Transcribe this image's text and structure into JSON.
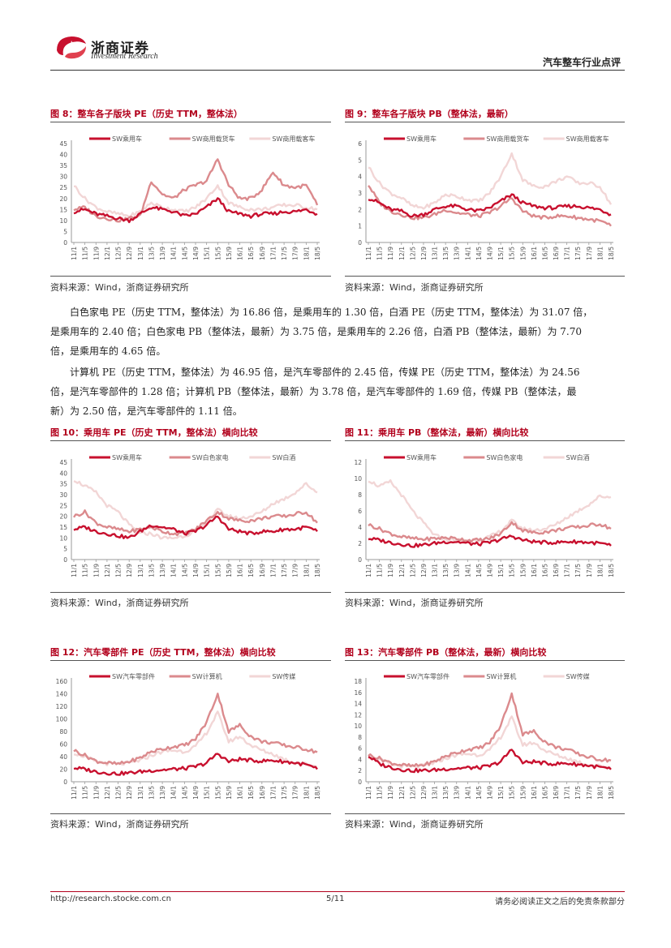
{
  "header": {
    "logo_cn": "浙商证券",
    "logo_en": "Investment Research",
    "report_type": "汽车整车行业点评"
  },
  "colors": {
    "brand": "#b2001c",
    "s1": "#c8102e",
    "s2": "#db8a8d",
    "s3": "#f2d6d6"
  },
  "source_text": "资料来源：Wind，浙商证券研究所",
  "figures": {
    "f8": {
      "title": "图 8：整车各子版块 PE（历史 TTM，整体法）"
    },
    "f9": {
      "title": "图 9：整车各子版块 PB（整体法，最新）"
    },
    "f10": {
      "title": "图 10：乘用车 PE（历史 TTM，整体法）横向比较"
    },
    "f11": {
      "title": "图 11：乘用车 PB（整体法，最新）横向比较"
    },
    "f12": {
      "title": "图 12：汽车零部件 PE（历史 TTM，整体法）横向比较"
    },
    "f13": {
      "title": "图 13：汽车零部件 PB（整体法，最新）横向比较"
    }
  },
  "paragraphs": {
    "p1": [
      "白色家电 PE（历史 TTM，整体法）为 16.86 倍，是乘用车的 1.30 倍，白酒 PE（历史 TTM，整体法）为 31.07 倍，",
      "是乘用车的 2.40 倍；白色家电 PB（整体法，最新）为 3.75 倍，是乘用车的 2.26 倍，白酒 PB（整体法，最新）为 7.70",
      "倍，是乘用车的 4.65 倍。"
    ],
    "p2": [
      "计算机 PE（历史 TTM，整体法）为 46.95 倍，是汽车零部件的 2.45 倍，传媒 PE（历史 TTM，整体法）为 24.56",
      "倍，是汽车零部件的 1.28 倍；计算机 PB（整体法，最新）为 3.78 倍，是汽车零部件的 1.69 倍，传媒 PB（整体法，最",
      "新）为 2.50 倍，是汽车零部件的 1.11 倍。"
    ]
  },
  "footer": {
    "url": "http://research.stocke.com.cn",
    "page": "5/11",
    "disclaimer": "请务必阅读正文之后的免责条款部分"
  },
  "chart_data": [
    {
      "id": "f8",
      "type": "line",
      "title": "图 8：整车各子版块 PE（历史 TTM，整体法）",
      "x": [
        "11/1",
        "11/5",
        "11/9",
        "12/1",
        "12/5",
        "12/9",
        "13/1",
        "13/5",
        "13/9",
        "14/1",
        "14/5",
        "14/9",
        "15/1",
        "15/5",
        "15/9",
        "16/1",
        "16/5",
        "16/9",
        "17/1",
        "17/5",
        "17/9",
        "18/1",
        "18/5"
      ],
      "ylim": [
        0,
        45
      ],
      "yticks": [
        0,
        5,
        10,
        15,
        20,
        25,
        30,
        35,
        40,
        45
      ],
      "series": [
        {
          "name": "SW乘用车",
          "values": [
            14,
            15,
            13,
            12,
            11,
            10,
            13,
            16,
            15,
            14,
            12,
            13,
            16,
            20,
            14,
            13,
            12,
            13,
            13,
            14,
            14,
            15,
            13
          ]
        },
        {
          "name": "SW商用载货车",
          "values": [
            15,
            16,
            12,
            11,
            10,
            11,
            12,
            28,
            22,
            20,
            24,
            26,
            28,
            38,
            26,
            20,
            20,
            24,
            32,
            26,
            25,
            26,
            17
          ]
        },
        {
          "name": "SW商用载客车",
          "values": [
            26,
            20,
            16,
            14,
            13,
            12,
            14,
            18,
            16,
            15,
            14,
            16,
            20,
            26,
            18,
            16,
            15,
            15,
            16,
            17,
            17,
            16,
            15
          ]
        }
      ]
    },
    {
      "id": "f9",
      "type": "line",
      "title": "图 9：整车各子版块 PB（整体法，最新）",
      "x": [
        "11/1",
        "11/5",
        "11/9",
        "12/1",
        "12/5",
        "12/9",
        "13/1",
        "13/5",
        "13/9",
        "14/1",
        "14/5",
        "14/9",
        "15/1",
        "15/5",
        "15/9",
        "16/1",
        "16/5",
        "16/9",
        "17/1",
        "17/5",
        "17/9",
        "18/1",
        "18/5"
      ],
      "ylim": [
        0,
        6
      ],
      "yticks": [
        0,
        1,
        2,
        3,
        4,
        5,
        6
      ],
      "series": [
        {
          "name": "SW乘用车",
          "values": [
            2.7,
            2.4,
            2.0,
            1.9,
            1.6,
            1.7,
            2.0,
            2.2,
            2.2,
            2.0,
            1.9,
            2.1,
            2.5,
            2.9,
            2.4,
            2.2,
            2.1,
            2.1,
            2.2,
            2.2,
            2.1,
            2.0,
            1.7
          ]
        },
        {
          "name": "SW商用载货车",
          "values": [
            3.5,
            2.4,
            1.9,
            1.7,
            1.5,
            1.5,
            1.7,
            2.0,
            1.8,
            1.7,
            1.6,
            1.8,
            2.2,
            2.7,
            1.9,
            1.6,
            1.5,
            1.6,
            1.6,
            1.5,
            1.4,
            1.3,
            1.0
          ]
        },
        {
          "name": "SW商用载客车",
          "values": [
            4.6,
            3.6,
            3.0,
            2.7,
            2.2,
            2.1,
            2.4,
            2.9,
            2.8,
            2.6,
            2.5,
            3.0,
            4.0,
            5.4,
            3.8,
            3.4,
            3.4,
            3.7,
            4.0,
            3.6,
            3.6,
            3.4,
            2.3
          ]
        }
      ]
    },
    {
      "id": "f10",
      "type": "line",
      "title": "图 10：乘用车 PE（历史 TTM，整体法）横向比较",
      "x": [
        "11/1",
        "11/5",
        "11/9",
        "12/1",
        "12/5",
        "12/9",
        "13/1",
        "13/5",
        "13/9",
        "14/1",
        "14/5",
        "14/9",
        "15/1",
        "15/5",
        "15/9",
        "16/1",
        "16/5",
        "16/9",
        "17/1",
        "17/5",
        "17/9",
        "18/1",
        "18/5"
      ],
      "ylim": [
        0,
        45
      ],
      "yticks": [
        0,
        5,
        10,
        15,
        20,
        25,
        30,
        35,
        40,
        45
      ],
      "series": [
        {
          "name": "SW乘用车",
          "values": [
            14,
            15,
            13,
            12,
            11,
            10,
            13,
            16,
            15,
            14,
            12,
            13,
            16,
            20,
            14,
            13,
            12,
            13,
            13,
            14,
            14,
            15,
            13
          ]
        },
        {
          "name": "SW白色家电",
          "values": [
            20,
            22,
            17,
            15,
            14,
            13,
            14,
            15,
            13,
            12,
            12,
            14,
            18,
            22,
            19,
            18,
            18,
            19,
            20,
            20,
            21,
            22,
            17
          ]
        },
        {
          "name": "SW白酒",
          "values": [
            37,
            34,
            31,
            25,
            22,
            16,
            12,
            12,
            10,
            10,
            11,
            13,
            17,
            23,
            20,
            19,
            20,
            22,
            26,
            28,
            31,
            35,
            31
          ]
        }
      ]
    },
    {
      "id": "f11",
      "type": "line",
      "title": "图 11：乘用车 PB（整体法，最新）横向比较",
      "x": [
        "11/1",
        "11/5",
        "11/9",
        "12/1",
        "12/5",
        "12/9",
        "13/1",
        "13/5",
        "13/9",
        "14/1",
        "14/5",
        "14/9",
        "15/1",
        "15/5",
        "15/9",
        "16/1",
        "16/5",
        "16/9",
        "17/1",
        "17/5",
        "17/9",
        "18/1",
        "18/5"
      ],
      "ylim": [
        0,
        12
      ],
      "yticks": [
        0,
        2,
        4,
        6,
        8,
        10,
        12
      ],
      "series": [
        {
          "name": "SW乘用车",
          "values": [
            2.6,
            2.4,
            2.1,
            1.9,
            1.7,
            1.8,
            2.0,
            2.2,
            2.2,
            2.0,
            1.9,
            2.1,
            2.5,
            2.9,
            2.4,
            2.2,
            2.1,
            2.1,
            2.2,
            2.2,
            2.1,
            2.0,
            1.7
          ]
        },
        {
          "name": "SW白色家电",
          "values": [
            4.3,
            3.8,
            3.2,
            2.8,
            2.6,
            2.5,
            2.6,
            2.7,
            2.6,
            2.4,
            2.4,
            2.6,
            3.2,
            4.6,
            3.6,
            3.3,
            3.4,
            3.6,
            3.9,
            4.0,
            4.2,
            4.4,
            3.8
          ]
        },
        {
          "name": "SW白酒",
          "values": [
            9.8,
            9.0,
            9.6,
            8.0,
            6.0,
            4.5,
            3.0,
            2.5,
            2.4,
            2.3,
            2.4,
            2.8,
            3.5,
            4.8,
            3.8,
            3.6,
            3.8,
            4.3,
            5.2,
            6.0,
            6.8,
            7.8,
            7.7
          ]
        }
      ]
    },
    {
      "id": "f12",
      "type": "line",
      "title": "图 12：汽车零部件 PE（历史 TTM，整体法）横向比较",
      "x": [
        "11/1",
        "11/5",
        "11/9",
        "12/1",
        "12/5",
        "12/9",
        "13/1",
        "13/5",
        "13/9",
        "14/1",
        "14/5",
        "14/9",
        "15/1",
        "15/5",
        "15/9",
        "16/1",
        "16/5",
        "16/9",
        "17/1",
        "17/5",
        "17/9",
        "18/1",
        "18/5"
      ],
      "ylim": [
        0,
        160
      ],
      "yticks": [
        0,
        20,
        40,
        60,
        80,
        100,
        120,
        140,
        160
      ],
      "series": [
        {
          "name": "SW汽车零部件",
          "values": [
            22,
            20,
            16,
            14,
            13,
            14,
            16,
            18,
            19,
            20,
            21,
            24,
            30,
            45,
            32,
            36,
            34,
            33,
            34,
            32,
            30,
            27,
            20
          ]
        },
        {
          "name": "SW计算机",
          "values": [
            50,
            42,
            33,
            30,
            28,
            32,
            38,
            48,
            52,
            56,
            58,
            68,
            95,
            140,
            80,
            90,
            72,
            64,
            62,
            58,
            55,
            52,
            47
          ]
        },
        {
          "name": "SW传媒",
          "values": [
            46,
            40,
            32,
            29,
            28,
            30,
            34,
            42,
            48,
            50,
            48,
            56,
            78,
            110,
            64,
            72,
            58,
            50,
            44,
            36,
            30,
            28,
            24
          ]
        }
      ]
    },
    {
      "id": "f13",
      "type": "line",
      "title": "图 13：汽车零部件 PB（整体法，最新）横向比较",
      "x": [
        "11/1",
        "11/5",
        "11/9",
        "12/1",
        "12/5",
        "12/9",
        "13/1",
        "13/5",
        "13/9",
        "14/1",
        "14/5",
        "14/9",
        "15/1",
        "15/5",
        "15/9",
        "16/1",
        "16/5",
        "16/9",
        "17/1",
        "17/5",
        "17/9",
        "18/1",
        "18/5"
      ],
      "ylim": [
        0,
        18
      ],
      "yticks": [
        0,
        2,
        4,
        6,
        8,
        10,
        12,
        14,
        16,
        18
      ],
      "series": [
        {
          "name": "SW汽车零部件",
          "values": [
            4.6,
            3.2,
            2.6,
            2.2,
            2.0,
            2.0,
            2.1,
            2.3,
            2.4,
            2.5,
            2.5,
            2.8,
            3.6,
            5.8,
            3.4,
            3.6,
            3.3,
            3.2,
            3.3,
            3.1,
            2.9,
            2.6,
            2.2
          ]
        },
        {
          "name": "SW计算机",
          "values": [
            4.8,
            4.2,
            3.4,
            3.0,
            2.8,
            3.0,
            3.6,
            4.6,
            5.2,
            5.8,
            6.0,
            7.0,
            10.0,
            15.8,
            8.5,
            9.0,
            7.2,
            6.2,
            5.8,
            5.0,
            4.4,
            4.0,
            3.8
          ]
        },
        {
          "name": "SW传媒",
          "values": [
            4.5,
            4.0,
            3.2,
            2.8,
            2.6,
            2.9,
            3.4,
            4.2,
            4.8,
            5.0,
            4.8,
            5.6,
            8.0,
            11.5,
            6.6,
            7.0,
            5.6,
            4.8,
            4.2,
            3.6,
            3.0,
            2.8,
            2.5
          ]
        }
      ]
    }
  ]
}
